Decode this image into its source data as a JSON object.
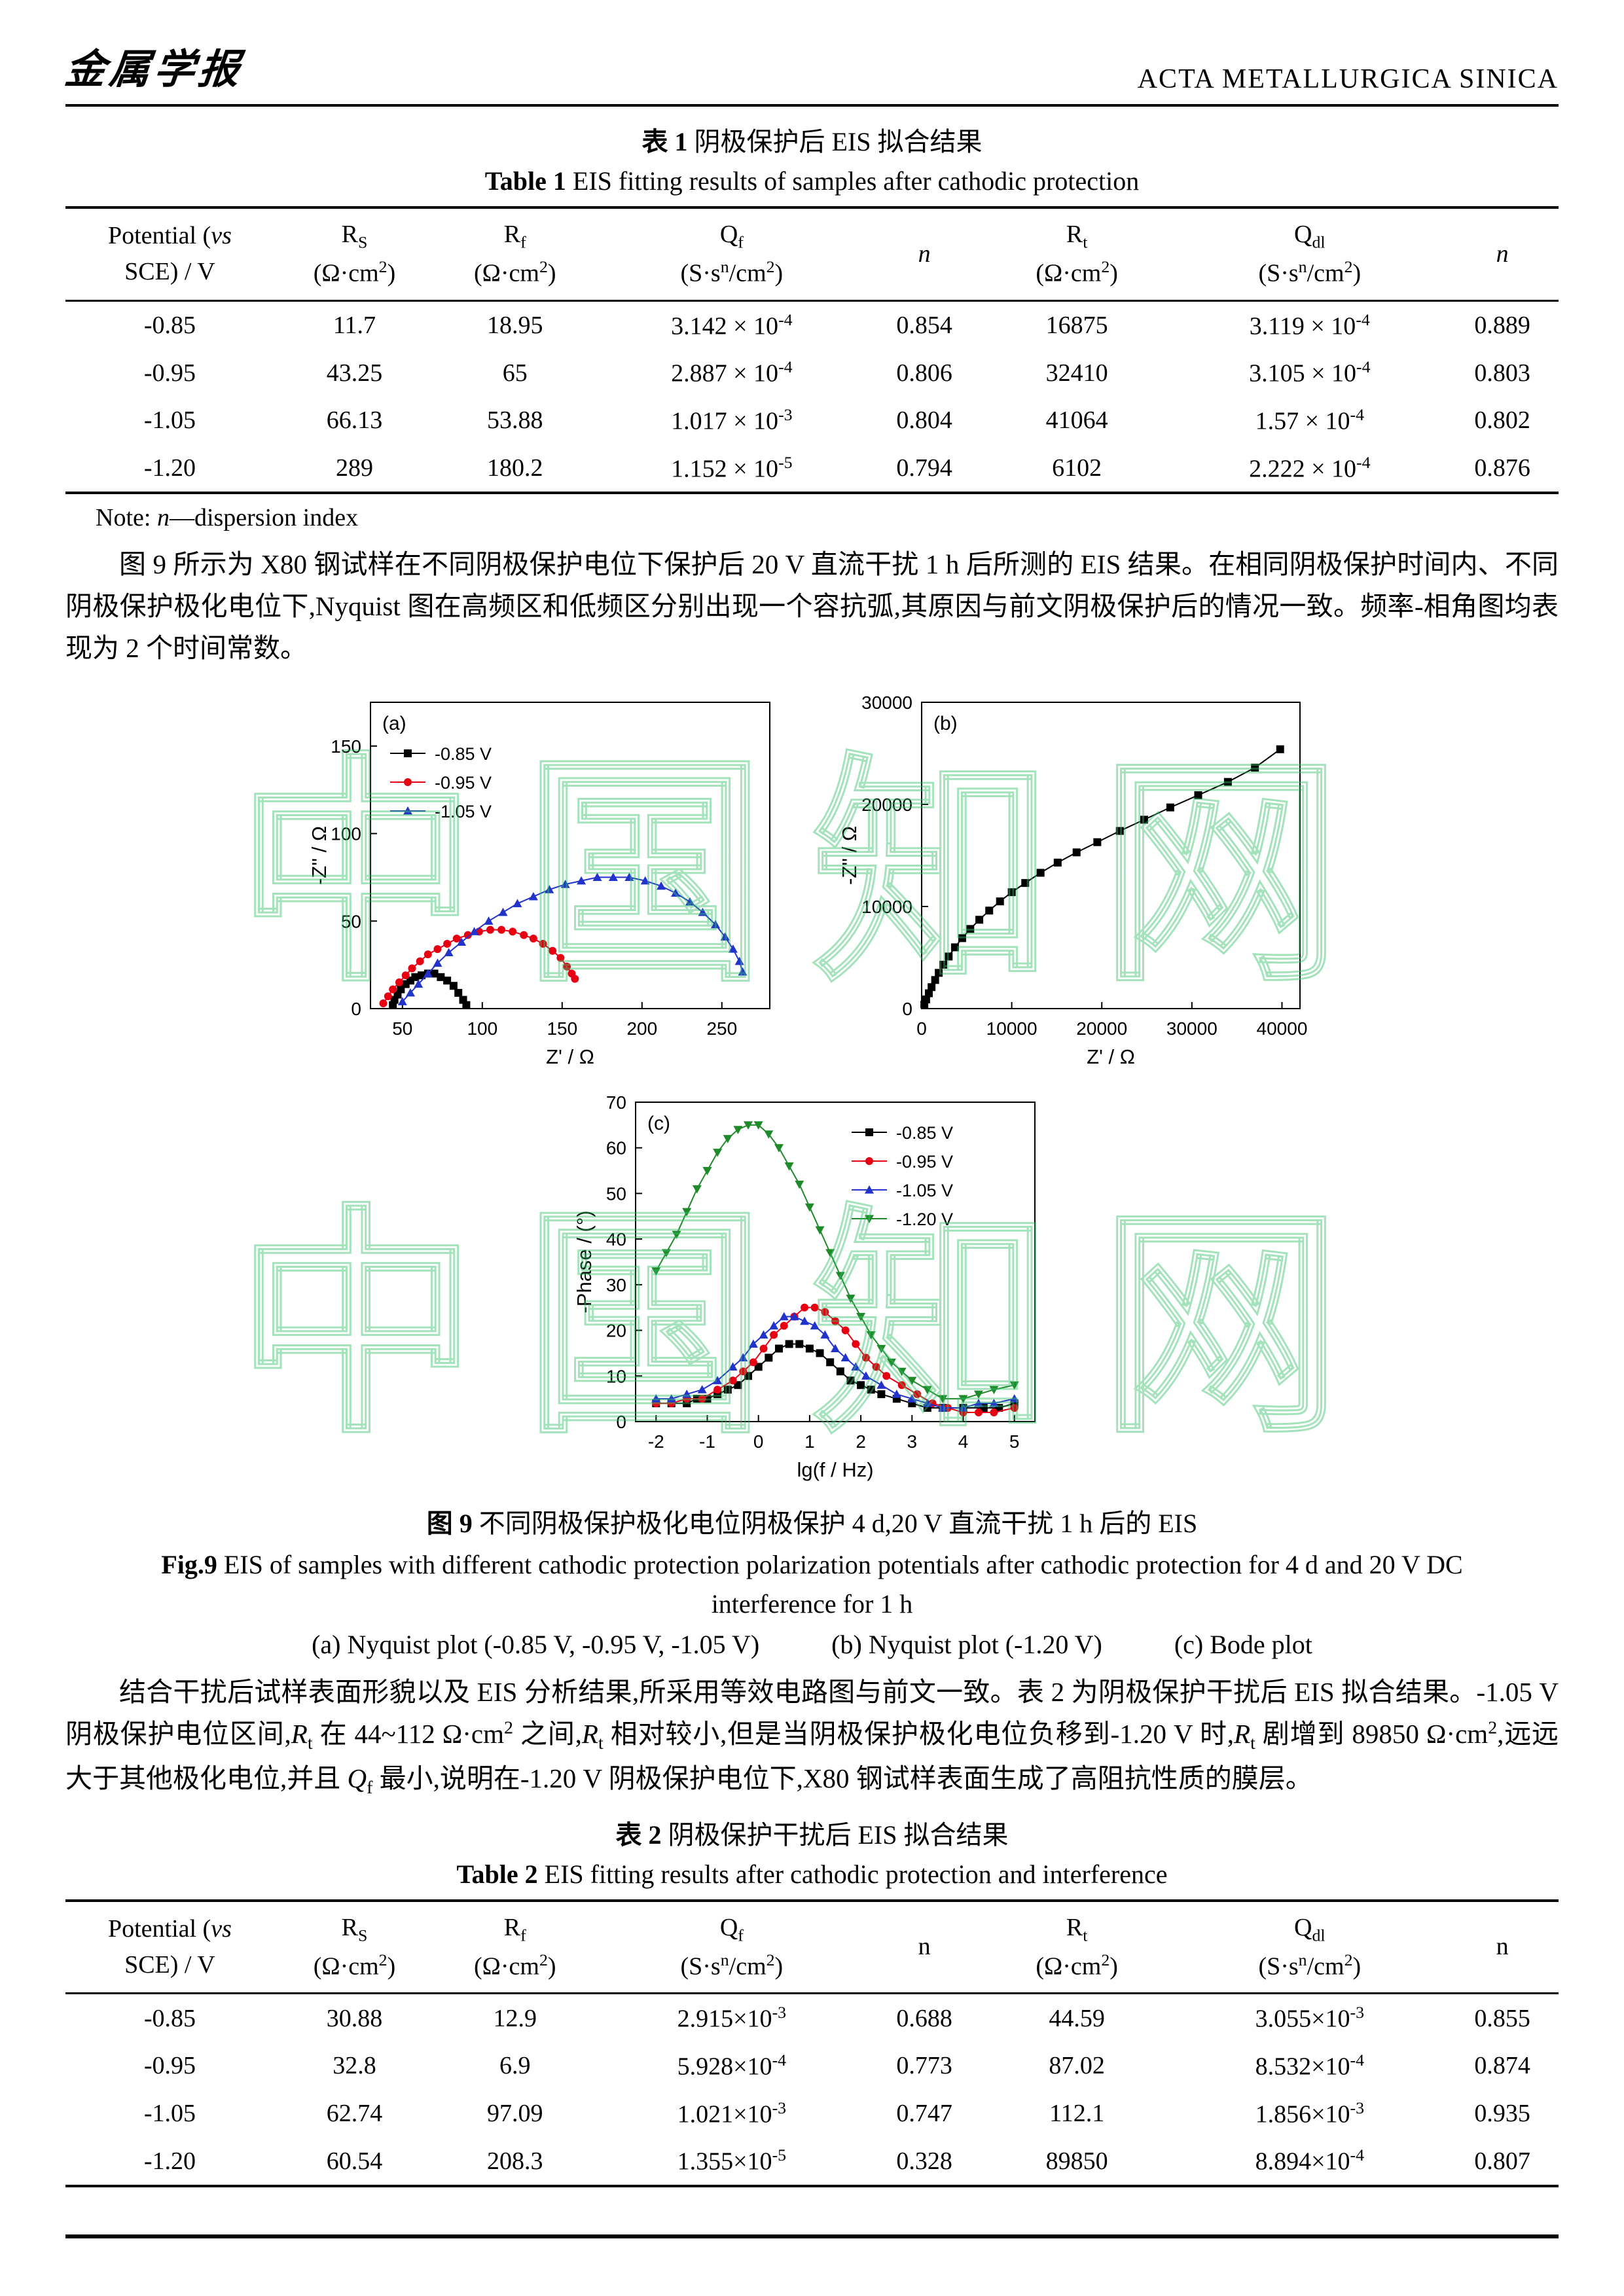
{
  "header": {
    "logo": "金属学报",
    "journal": "ACTA METALLURGICA SINICA"
  },
  "watermark": {
    "text": "中国知网"
  },
  "table1": {
    "title_cn": "<b>表 1</b> 阴极保护后 EIS 拟合结果",
    "title_en": "<b>Table 1</b> EIS fitting results of samples after cathodic protection",
    "columns": [
      "Potential (<i>vs</i><br>SCE) / V",
      "R<sub>S</sub><br>(Ω·cm<sup>2</sup>)",
      "R<sub>f</sub><br>(Ω·cm<sup>2</sup>)",
      "Q<sub>f</sub><br>(S·s<sup>n</sup>/cm<sup>2</sup>)",
      "<i>n</i>",
      "R<sub>t</sub><br>(Ω·cm<sup>2</sup>)",
      "Q<sub>dl</sub><br>(S·s<sup>n</sup>/cm<sup>2</sup>)",
      "<i>n</i>"
    ],
    "rows": [
      [
        "-0.85",
        "11.7",
        "18.95",
        "3.142 × 10<sup>-4</sup>",
        "0.854",
        "16875",
        "3.119 × 10<sup>-4</sup>",
        "0.889"
      ],
      [
        "-0.95",
        "43.25",
        "65",
        "2.887 × 10<sup>-4</sup>",
        "0.806",
        "32410",
        "3.105 × 10<sup>-4</sup>",
        "0.803"
      ],
      [
        "-1.05",
        "66.13",
        "53.88",
        "1.017 × 10<sup>-3</sup>",
        "0.804",
        "41064",
        "1.57 × 10<sup>-4</sup>",
        "0.802"
      ],
      [
        "-1.20",
        "289",
        "180.2",
        "1.152 × 10<sup>-5</sup>",
        "0.794",
        "6102",
        "2.222 × 10<sup>-4</sup>",
        "0.876"
      ]
    ],
    "note": "Note: <i>n</i>—dispersion index"
  },
  "para1": "图 9 所示为 X80 钢试样在不同阴极保护电位下保护后 20 V 直流干扰 1 h 后所测的 EIS 结果。在相同阴极保护时间内、不同阴极保护极化电位下,Nyquist 图在高频区和低频区分别出现一个容抗弧,其原因与前文阴极保护后的情况一致。频率-相角图均表现为 2 个时间常数。",
  "fig_caption": {
    "cn": "<b>图 9</b> 不同阴极保护极化电位阴极保护 4 d,20 V 直流干扰 1 h 后的 EIS",
    "en": "<b>Fig.9</b> EIS of samples with different cathodic protection polarization potentials after cathodic protection for 4 d and 20 V DC interference for 1 h",
    "sub_a": "(a) Nyquist plot (-0.85 V, -0.95 V, -1.05 V)",
    "sub_b": "(b) Nyquist plot (-1.20 V)",
    "sub_c": "(c) Bode plot"
  },
  "para2": "结合干扰后试样表面形貌以及 EIS 分析结果,所采用等效电路图与前文一致。表 2 为阴极保护干扰后 EIS 拟合结果。-1.05 V 阴极保护电位区间,<i>R</i><sub>t</sub> 在 44~112 Ω·cm<sup>2</sup> 之间,<i>R</i><sub>t</sub> 相对较小,但是当阴极保护极化电位负移到-1.20 V 时,<i>R</i><sub>t</sub> 剧增到 89850 Ω·cm<sup>2</sup>,远远大于其他极化电位,并且 <i>Q</i><sub>f</sub> 最小,说明在-1.20 V 阴极保护电位下,X80 钢试样表面生成了高阻抗性质的膜层。",
  "table2": {
    "title_cn": "<b>表 2</b> 阴极保护干扰后 EIS 拟合结果",
    "title_en": "<b>Table 2</b> EIS fitting results after cathodic protection and interference",
    "columns": [
      "Potential (<i>vs</i><br>SCE) / V",
      "R<sub>S</sub><br>(Ω·cm<sup>2</sup>)",
      "R<sub>f</sub><br>(Ω·cm<sup>2</sup>)",
      "Q<sub>f</sub><br>(S·s<sup>n</sup>/cm<sup>2</sup>)",
      "n",
      "R<sub>t</sub><br>(Ω·cm<sup>2</sup>)",
      "Q<sub>dl</sub><br>(S·s<sup>n</sup>/cm<sup>2</sup>)",
      "n"
    ],
    "rows": [
      [
        "-0.85",
        "30.88",
        "12.9",
        "2.915×10<sup>-3</sup>",
        "0.688",
        "44.59",
        "3.055×10<sup>-3</sup>",
        "0.855"
      ],
      [
        "-0.95",
        "32.8",
        "6.9",
        "5.928×10<sup>-4</sup>",
        "0.773",
        "87.02",
        "8.532×10<sup>-4</sup>",
        "0.874"
      ],
      [
        "-1.05",
        "62.74",
        "97.09",
        "1.021×10<sup>-3</sup>",
        "0.747",
        "112.1",
        "1.856×10<sup>-3</sup>",
        "0.935"
      ],
      [
        "-1.20",
        "60.54",
        "208.3",
        "1.355×10<sup>-5</sup>",
        "0.328",
        "89850",
        "8.894×10<sup>-4</sup>",
        "0.807"
      ]
    ]
  },
  "chart_data": [
    {
      "type": "scatter",
      "panel": "(a)",
      "xlabel": "Z' / Ω",
      "ylabel": "-Z'' / Ω",
      "xmin": 30,
      "xmax": 280,
      "xticks": [
        50,
        100,
        150,
        200,
        250
      ],
      "ymin": 0,
      "ymax": 175,
      "yticks": [
        0,
        50,
        100,
        150
      ],
      "legend": "tl",
      "series": [
        {
          "name": "-0.85 V",
          "color": "#000000",
          "marker": "square",
          "points": [
            [
              44,
              2
            ],
            [
              45,
              5
            ],
            [
              47,
              8
            ],
            [
              49,
              11
            ],
            [
              52,
              14
            ],
            [
              55,
              16
            ],
            [
              58,
              18
            ],
            [
              62,
              19
            ],
            [
              66,
              20
            ],
            [
              70,
              20
            ],
            [
              74,
              18
            ],
            [
              78,
              16
            ],
            [
              82,
              13
            ],
            [
              85,
              9
            ],
            [
              88,
              5
            ],
            [
              90,
              2
            ]
          ]
        },
        {
          "name": "-0.95 V",
          "color": "#e60012",
          "marker": "circle",
          "points": [
            [
              38,
              3
            ],
            [
              41,
              7
            ],
            [
              44,
              11
            ],
            [
              48,
              15
            ],
            [
              52,
              19
            ],
            [
              56,
              23
            ],
            [
              61,
              27
            ],
            [
              66,
              31
            ],
            [
              72,
              34
            ],
            [
              78,
              37
            ],
            [
              84,
              40
            ],
            [
              91,
              42
            ],
            [
              98,
              44
            ],
            [
              105,
              45
            ],
            [
              112,
              45
            ],
            [
              119,
              44
            ],
            [
              126,
              42
            ],
            [
              132,
              40
            ],
            [
              138,
              37
            ],
            [
              144,
              33
            ],
            [
              149,
              29
            ],
            [
              153,
              24
            ],
            [
              156,
              20
            ],
            [
              158,
              17
            ]
          ]
        },
        {
          "name": "-1.05 V",
          "color": "#2233cc",
          "marker": "tri-up",
          "points": [
            [
              50,
              4
            ],
            [
              55,
              9
            ],
            [
              60,
              14
            ],
            [
              66,
              20
            ],
            [
              72,
              26
            ],
            [
              79,
              32
            ],
            [
              87,
              38
            ],
            [
              95,
              44
            ],
            [
              104,
              50
            ],
            [
              113,
              55
            ],
            [
              122,
              60
            ],
            [
              132,
              64
            ],
            [
              142,
              68
            ],
            [
              152,
              71
            ],
            [
              162,
              73
            ],
            [
              172,
              75
            ],
            [
              182,
              75
            ],
            [
              192,
              75
            ],
            [
              202,
              73
            ],
            [
              212,
              70
            ],
            [
              221,
              66
            ],
            [
              230,
              61
            ],
            [
              238,
              55
            ],
            [
              246,
              48
            ],
            [
              252,
              41
            ],
            [
              257,
              34
            ],
            [
              261,
              27
            ],
            [
              263,
              21
            ]
          ]
        }
      ]
    },
    {
      "type": "scatter",
      "panel": "(b)",
      "xlabel": "Z' / Ω",
      "ylabel": "-Z'' / Ω",
      "xmin": 0,
      "xmax": 42000,
      "xticks": [
        0,
        10000,
        20000,
        30000,
        40000
      ],
      "ymin": 0,
      "ymax": 30000,
      "yticks": [
        0,
        10000,
        20000,
        30000
      ],
      "legend": null,
      "series": [
        {
          "name": "-1.20 V",
          "color": "#000000",
          "marker": "square",
          "points": [
            [
              300,
              400
            ],
            [
              500,
              900
            ],
            [
              800,
              1500
            ],
            [
              1100,
              2100
            ],
            [
              1500,
              2800
            ],
            [
              1900,
              3500
            ],
            [
              2400,
              4300
            ],
            [
              3000,
              5100
            ],
            [
              3700,
              6000
            ],
            [
              4500,
              6900
            ],
            [
              5400,
              7800
            ],
            [
              6400,
              8700
            ],
            [
              7500,
              9600
            ],
            [
              8700,
              10500
            ],
            [
              10000,
              11400
            ],
            [
              11500,
              12300
            ],
            [
              13200,
              13300
            ],
            [
              15100,
              14300
            ],
            [
              17200,
              15300
            ],
            [
              19500,
              16300
            ],
            [
              22000,
              17400
            ],
            [
              24700,
              18500
            ],
            [
              27600,
              19700
            ],
            [
              30700,
              20900
            ],
            [
              34000,
              22200
            ],
            [
              37000,
              23600
            ],
            [
              39800,
              25400
            ]
          ]
        }
      ]
    },
    {
      "type": "scatter",
      "panel": "(c)",
      "xlabel": "lg(f / Hz)",
      "ylabel": "-Phase / (°)",
      "xmin": -2.4,
      "xmax": 5.4,
      "xticks": [
        -2,
        -1,
        0,
        1,
        2,
        3,
        4,
        5
      ],
      "ymin": 0,
      "ymax": 70,
      "yticks": [
        0,
        10,
        20,
        30,
        40,
        50,
        60,
        70
      ],
      "legend": "tr",
      "series": [
        {
          "name": "-0.85 V",
          "color": "#000000",
          "marker": "square",
          "points": [
            [
              -2,
              4
            ],
            [
              -1.7,
              4
            ],
            [
              -1.4,
              4
            ],
            [
              -1.2,
              5
            ],
            [
              -1,
              5
            ],
            [
              -0.8,
              6
            ],
            [
              -0.6,
              7
            ],
            [
              -0.4,
              8
            ],
            [
              -0.2,
              10
            ],
            [
              0,
              12
            ],
            [
              0.2,
              14
            ],
            [
              0.4,
              16
            ],
            [
              0.6,
              17
            ],
            [
              0.8,
              17
            ],
            [
              1,
              16
            ],
            [
              1.2,
              15
            ],
            [
              1.4,
              13
            ],
            [
              1.6,
              11
            ],
            [
              1.8,
              9
            ],
            [
              2,
              8
            ],
            [
              2.2,
              7
            ],
            [
              2.4,
              6
            ],
            [
              2.7,
              5
            ],
            [
              3,
              4
            ],
            [
              3.3,
              3
            ],
            [
              3.6,
              3
            ],
            [
              4,
              3
            ],
            [
              4.4,
              3
            ],
            [
              4.7,
              3
            ],
            [
              5,
              4
            ]
          ]
        },
        {
          "name": "-0.95 V",
          "color": "#e60012",
          "marker": "circle",
          "points": [
            [
              -2,
              4
            ],
            [
              -1.7,
              4
            ],
            [
              -1.4,
              5
            ],
            [
              -1.1,
              5
            ],
            [
              -0.8,
              7
            ],
            [
              -0.5,
              9
            ],
            [
              -0.3,
              11
            ],
            [
              -0.1,
              13
            ],
            [
              0.1,
              16
            ],
            [
              0.3,
              19
            ],
            [
              0.5,
              21
            ],
            [
              0.7,
              23
            ],
            [
              0.9,
              25
            ],
            [
              1.1,
              25
            ],
            [
              1.3,
              24
            ],
            [
              1.5,
              22
            ],
            [
              1.7,
              20
            ],
            [
              1.9,
              17
            ],
            [
              2.1,
              14
            ],
            [
              2.3,
              12
            ],
            [
              2.5,
              10
            ],
            [
              2.8,
              8
            ],
            [
              3.1,
              6
            ],
            [
              3.4,
              4
            ],
            [
              3.7,
              3
            ],
            [
              4,
              2
            ],
            [
              4.3,
              2
            ],
            [
              4.6,
              2
            ],
            [
              5,
              3
            ]
          ]
        },
        {
          "name": "-1.05 V",
          "color": "#2233cc",
          "marker": "tri-up",
          "points": [
            [
              -2,
              5
            ],
            [
              -1.7,
              5
            ],
            [
              -1.4,
              6
            ],
            [
              -1.1,
              7
            ],
            [
              -0.8,
              9
            ],
            [
              -0.5,
              12
            ],
            [
              -0.3,
              14
            ],
            [
              -0.1,
              17
            ],
            [
              0.1,
              19
            ],
            [
              0.3,
              21
            ],
            [
              0.5,
              23
            ],
            [
              0.7,
              23
            ],
            [
              0.9,
              22
            ],
            [
              1.1,
              21
            ],
            [
              1.3,
              19
            ],
            [
              1.5,
              16
            ],
            [
              1.7,
              14
            ],
            [
              1.9,
              12
            ],
            [
              2.1,
              10
            ],
            [
              2.4,
              8
            ],
            [
              2.7,
              6
            ],
            [
              3,
              5
            ],
            [
              3.3,
              4
            ],
            [
              3.6,
              3
            ],
            [
              4,
              3
            ],
            [
              4.3,
              4
            ],
            [
              4.6,
              4
            ],
            [
              5,
              5
            ]
          ]
        },
        {
          "name": "-1.20 V",
          "color": "#1f8a2a",
          "marker": "tri-down",
          "points": [
            [
              -2,
              33
            ],
            [
              -1.8,
              37
            ],
            [
              -1.6,
              41
            ],
            [
              -1.4,
              46
            ],
            [
              -1.2,
              51
            ],
            [
              -1,
              55
            ],
            [
              -0.8,
              59
            ],
            [
              -0.6,
              62
            ],
            [
              -0.4,
              64
            ],
            [
              -0.2,
              65
            ],
            [
              0,
              65
            ],
            [
              0.2,
              63
            ],
            [
              0.4,
              60
            ],
            [
              0.6,
              56
            ],
            [
              0.8,
              52
            ],
            [
              1,
              47
            ],
            [
              1.2,
              42
            ],
            [
              1.4,
              37
            ],
            [
              1.6,
              32
            ],
            [
              1.8,
              27
            ],
            [
              2,
              23
            ],
            [
              2.2,
              19
            ],
            [
              2.4,
              16
            ],
            [
              2.6,
              13
            ],
            [
              2.8,
              11
            ],
            [
              3,
              9
            ],
            [
              3.3,
              7
            ],
            [
              3.6,
              5
            ],
            [
              4,
              5
            ],
            [
              4.3,
              6
            ],
            [
              4.6,
              7
            ],
            [
              5,
              8
            ]
          ]
        }
      ]
    }
  ]
}
